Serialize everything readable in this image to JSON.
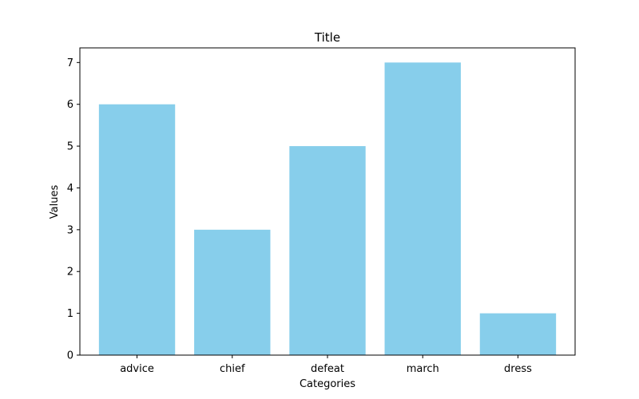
{
  "chart_data": {
    "type": "bar",
    "title": "Title",
    "xlabel": "Categories",
    "ylabel": "Values",
    "categories": [
      "advice",
      "chief",
      "defeat",
      "march",
      "dress"
    ],
    "values": [
      6,
      3,
      5,
      7,
      1
    ],
    "ylim": [
      0,
      7.35
    ],
    "yticks": [
      0,
      1,
      2,
      3,
      4,
      5,
      6,
      7
    ],
    "grid": false,
    "legend": "none",
    "bar_color": "#87ceeb"
  }
}
